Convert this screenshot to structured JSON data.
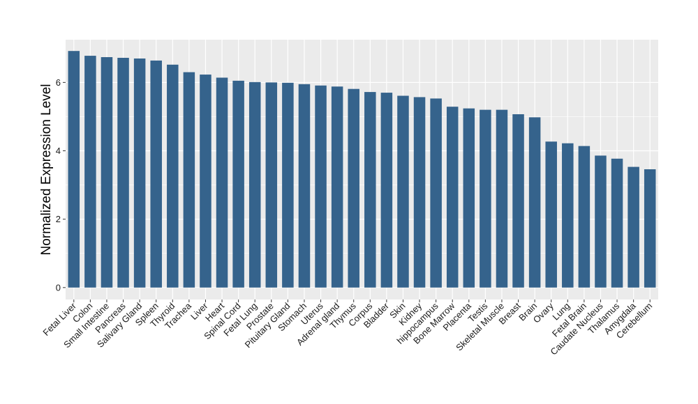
{
  "chart_data": {
    "type": "bar",
    "title": "",
    "xlabel": "",
    "ylabel": "Normalized Expression Level",
    "ylim": [
      -0.35,
      7.25
    ],
    "yticks": [
      0,
      2,
      4,
      6
    ],
    "grid": true,
    "bar_color": "#35638c",
    "panel_color": "#ebebeb",
    "categories": [
      "Fetal Liver",
      "Colon",
      "Small Intestine",
      "Pancreas",
      "Salivary Gland",
      "Spleen",
      "Thyroid",
      "Trachea",
      "Liver",
      "Heart",
      "Spinal Cord",
      "Fetal Lung",
      "Prostate",
      "Pituitary Gland",
      "Stomach",
      "Uterus",
      "Adrenal gland",
      "Thymus",
      "Corpus",
      "Bladder",
      "Skin",
      "Kidney",
      "hippocampus",
      "Bone Marrow",
      "Placenta",
      "Testis",
      "Skeletal Muscle",
      "Breast",
      "Brain",
      "Ovary",
      "Lung",
      "Fetal Brain",
      "Caudate Nucleus",
      "Thalamus",
      "Amygdala",
      "Cerebellum"
    ],
    "values": [
      6.92,
      6.78,
      6.74,
      6.72,
      6.7,
      6.64,
      6.52,
      6.3,
      6.23,
      6.14,
      6.05,
      6.01,
      6.0,
      5.99,
      5.95,
      5.91,
      5.88,
      5.81,
      5.72,
      5.7,
      5.61,
      5.57,
      5.53,
      5.29,
      5.24,
      5.2,
      5.2,
      5.07,
      4.98,
      4.27,
      4.22,
      4.14,
      3.86,
      3.77,
      3.53,
      3.46
    ]
  }
}
